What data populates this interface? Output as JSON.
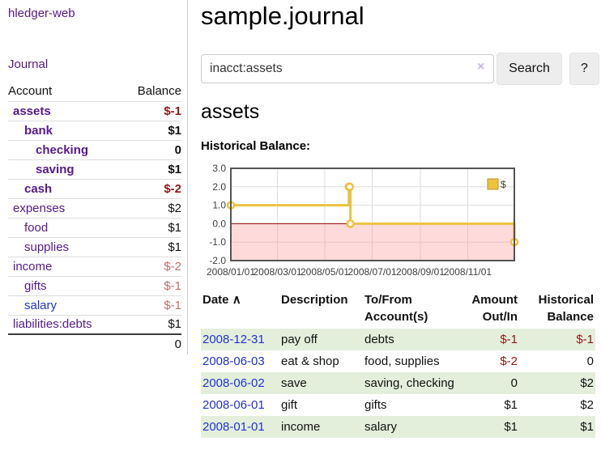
{
  "colors": {
    "link_purple": "#551a8b",
    "link_blue": "#2233cc",
    "negative_strong": "#8e1919",
    "negative_soft": "#c26e6e",
    "row_stripe_green": "#e3efdb",
    "chart_line_yellow": "#edc240",
    "chart_negative_fill": "rgba(255,150,150,0.35)",
    "chart_zero_line": "#8b0000"
  },
  "brand": "hledger-web",
  "sidebar": {
    "journal_link": "Journal",
    "accounts": {
      "header_account": "Account",
      "header_balance": "Balance",
      "rows": [
        {
          "name": "assets",
          "balance": "$-1"
        },
        {
          "name": "bank",
          "balance": "$1"
        },
        {
          "name": "checking",
          "balance": "0"
        },
        {
          "name": "saving",
          "balance": "$1"
        },
        {
          "name": "cash",
          "balance": "$-2"
        },
        {
          "name": "expenses",
          "balance": "$2"
        },
        {
          "name": "food",
          "balance": "$1"
        },
        {
          "name": "supplies",
          "balance": "$1"
        },
        {
          "name": "income",
          "balance": "$-2"
        },
        {
          "name": "gifts",
          "balance": "$-1"
        },
        {
          "name": "salary",
          "balance": "$-1"
        },
        {
          "name": "liabilities:debts",
          "balance": "$1"
        }
      ],
      "total": "0"
    }
  },
  "main": {
    "title": "sample.journal",
    "search": {
      "value": "inacct:assets",
      "clear_icon": "×",
      "search_button": "Search",
      "help_button": "?"
    },
    "account_heading": "assets",
    "chart_label": "Historical Balance:"
  },
  "chart_data": {
    "type": "line",
    "title": "Historical Balance",
    "steps": true,
    "series": [
      {
        "name": "$",
        "color": "#edc240",
        "points": [
          [
            "2008-01-01",
            1
          ],
          [
            "2008-06-01",
            2
          ],
          [
            "2008-06-02",
            2
          ],
          [
            "2008-06-03",
            0
          ],
          [
            "2008-12-31",
            -1
          ]
        ]
      }
    ],
    "xlim": [
      "2008-01-01",
      "2008-12-31"
    ],
    "ylim": [
      -2,
      3
    ],
    "x_tick_labels": [
      "2008/01/01",
      "2008/03/01",
      "2008/05/01",
      "2008/07/01",
      "2008/09/01",
      "2008/11/01"
    ],
    "y_tick_values": [
      3,
      2,
      1,
      0,
      -1,
      -2
    ],
    "y_tick_labels": [
      "3.0",
      "2.0",
      "1.0",
      "0.0",
      "-1.0",
      "-2.0"
    ],
    "grid": true,
    "legend_position": "top-right",
    "negative_region_fill": "rgba(255,150,150,0.35)",
    "zero_line_color": "#8b0000",
    "border_color": "#545454"
  },
  "register": {
    "headers": {
      "date": "Date",
      "sort_icon": "∧",
      "description": "Description",
      "tofrom_line1": "To/From",
      "tofrom_line2": "Account(s)",
      "amount_line1": "Amount",
      "amount_line2": "Out/In",
      "balance_line1": "Historical",
      "balance_line2": "Balance"
    },
    "rows": [
      {
        "date": "2008-12-31",
        "description": "pay off",
        "accounts": "debts",
        "amount": "$-1",
        "balance": "$-1"
      },
      {
        "date": "2008-06-03",
        "description": "eat & shop",
        "accounts": "food, supplies",
        "amount": "$-2",
        "balance": "0"
      },
      {
        "date": "2008-06-02",
        "description": "save",
        "accounts": "saving, checking",
        "amount": "0",
        "balance": "$2"
      },
      {
        "date": "2008-06-01",
        "description": "gift",
        "accounts": "gifts",
        "amount": "$1",
        "balance": "$2"
      },
      {
        "date": "2008-01-01",
        "description": "income",
        "accounts": "salary",
        "amount": "$1",
        "balance": "$1"
      }
    ]
  }
}
